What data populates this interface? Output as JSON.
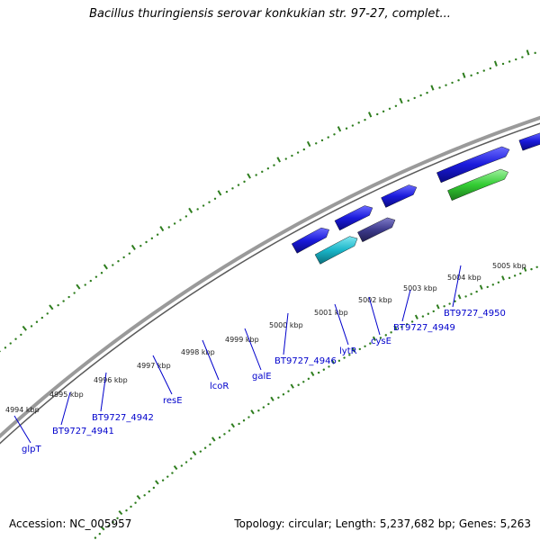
{
  "title": "Bacillus thuringiensis serovar konkukian str. 97-27, complet...",
  "accession": "Accession: NC_005957",
  "topology": "Topology: circular; Length: 5,237,682 bp; Genes: 5,263",
  "ticks": [
    {
      "label": "4994 kbp"
    },
    {
      "label": "4995 kbp"
    },
    {
      "label": "4996 kbp"
    },
    {
      "label": "4997 kbp"
    },
    {
      "label": "4998 kbp"
    },
    {
      "label": "4999 kbp"
    },
    {
      "label": "5000 kbp"
    },
    {
      "label": "5001 kbp"
    },
    {
      "label": "5002 kbp"
    },
    {
      "label": "5003 kbp"
    },
    {
      "label": "5004 kbp"
    },
    {
      "label": "5005 kbp"
    }
  ],
  "gene_labels": [
    {
      "text": "glpT"
    },
    {
      "text": "BT9727_4941"
    },
    {
      "text": "BT9727_4942"
    },
    {
      "text": "resE"
    },
    {
      "text": "lcoR"
    },
    {
      "text": "galE"
    },
    {
      "text": "BT9727_4946"
    },
    {
      "text": "lytR"
    },
    {
      "text": "cysE"
    },
    {
      "text": "BT9727_4949"
    },
    {
      "text": "BT9727_4950"
    }
  ],
  "colors": {
    "dots": "#2e7d1e",
    "backbone": "#8a8a8a",
    "gene_blue": "#1a1adb",
    "gene_cyan": "#19b5c8",
    "gene_navy": "#3d3a8c",
    "gene_green": "#33cc33",
    "gene_olive": "#6b8e23",
    "gene_orange": "#ff8c00",
    "gene_steel": "#4682b4",
    "gene_gray": "#c0c0c0",
    "label_blue": "#0000cc"
  }
}
